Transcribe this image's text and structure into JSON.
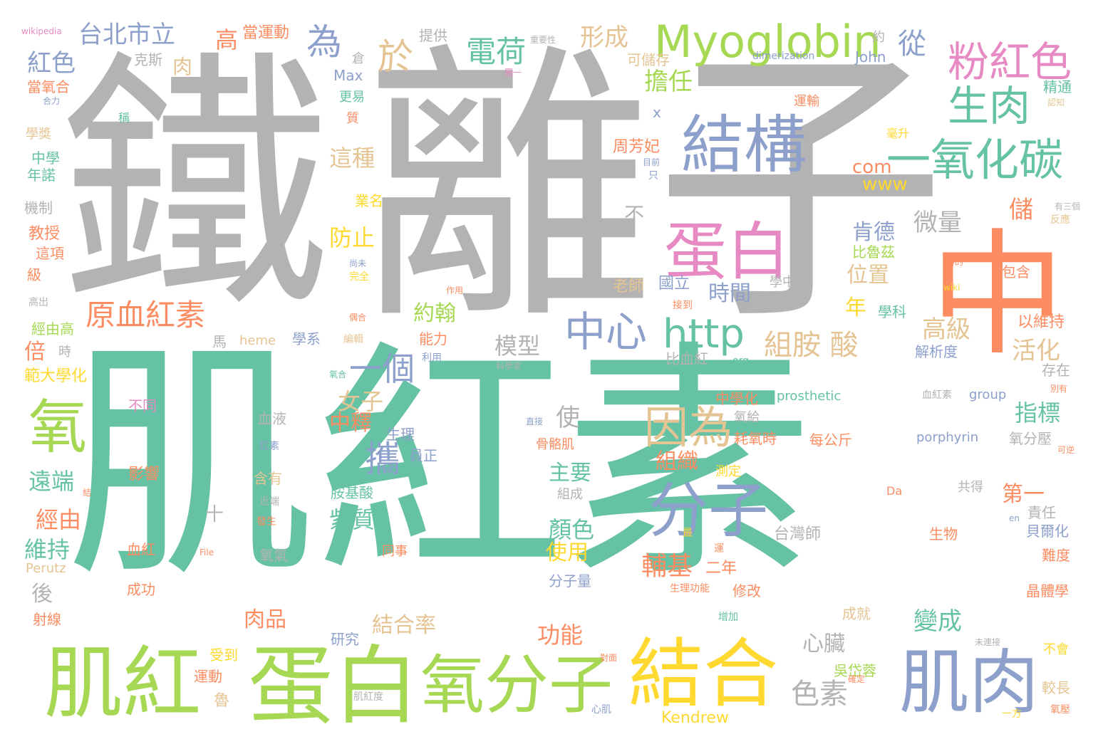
{
  "words": [
    {
      "text": "肌紅素",
      "color": "#66c2a5"
    },
    {
      "text": "鐵",
      "color": "#b3b3b3"
    },
    {
      "text": "離子",
      "color": "#b3b3b3"
    },
    {
      "text": "中",
      "color": "#fc8d62"
    },
    {
      "text": "肌紅",
      "color": "#a6d854"
    },
    {
      "text": "蛋白",
      "color": "#a6d854"
    },
    {
      "text": "氧分子",
      "color": "#a6d854"
    },
    {
      "text": "結合",
      "color": "#ffd92f"
    },
    {
      "text": "肌肉",
      "color": "#8da0cb"
    },
    {
      "text": "結構",
      "color": "#8da0cb"
    },
    {
      "text": "蛋白",
      "color": "#e78ac3"
    },
    {
      "text": "Myoglobin",
      "color": "#a6d854"
    },
    {
      "text": "粉紅色",
      "color": "#e78ac3"
    },
    {
      "text": "生肉",
      "color": "#66c2a5"
    },
    {
      "text": "一氧化碳",
      "color": "#66c2a5"
    },
    {
      "text": "分子",
      "color": "#8da0cb"
    },
    {
      "text": "因為",
      "color": "#e5c494"
    },
    {
      "text": "中心",
      "color": "#8da0cb"
    },
    {
      "text": "http",
      "color": "#66c2a5"
    },
    {
      "text": "氧",
      "color": "#a6d854"
    },
    {
      "text": "一個",
      "color": "#8da0cb"
    },
    {
      "text": "原血紅素",
      "color": "#fc8d62"
    },
    {
      "text": "攜",
      "color": "#8da0cb"
    },
    {
      "text": "組胺 酸",
      "color": "#e5c494"
    },
    {
      "text": "電荷",
      "color": "#66c2a5"
    },
    {
      "text": "為",
      "color": "#8da0cb"
    },
    {
      "text": "於",
      "color": "#e5c494"
    },
    {
      "text": "台北市立",
      "color": "#8da0cb"
    },
    {
      "text": "紅色",
      "color": "#8da0cb"
    },
    {
      "text": "當運動",
      "color": "#fc8d62"
    },
    {
      "text": "形成",
      "color": "#e5c494"
    },
    {
      "text": "擔任",
      "color": "#a6d854"
    },
    {
      "text": "從",
      "color": "#8da0cb"
    },
    {
      "text": "色素",
      "color": "#b3b3b3"
    },
    {
      "text": "Kendrew",
      "color": "#ffd92f"
    },
    {
      "text": "wikipedia",
      "color": "#e78ac3"
    },
    {
      "text": "提供",
      "color": "#b3b3b3"
    },
    {
      "text": "約",
      "color": "#b3b3b3"
    },
    {
      "text": "高",
      "color": "#fc8d62"
    },
    {
      "text": "克斯",
      "color": "#b3b3b3"
    },
    {
      "text": "肉",
      "color": "#e5c494"
    },
    {
      "text": "可儲存",
      "color": "#e5c494"
    },
    {
      "text": "John",
      "color": "#8da0cb"
    },
    {
      "text": "dimerization",
      "color": "#8da0cb"
    },
    {
      "text": "Max",
      "color": "#8da0cb"
    },
    {
      "text": "倉",
      "color": "#b3b3b3"
    },
    {
      "text": "精通",
      "color": "#66c2a5"
    },
    {
      "text": "當氧合",
      "color": "#fc8d62"
    },
    {
      "text": "更易",
      "color": "#66c2a5"
    },
    {
      "text": "運輸",
      "color": "#fc8d62"
    },
    {
      "text": "這種",
      "color": "#e5c494"
    },
    {
      "text": "周芳妃",
      "color": "#fc8d62"
    },
    {
      "text": "com",
      "color": "#fc8d62"
    },
    {
      "text": "www",
      "color": "#ffd92f"
    },
    {
      "text": "中學",
      "color": "#66c2a5"
    },
    {
      "text": "年諾",
      "color": "#66c2a5"
    },
    {
      "text": "機制",
      "color": "#b3b3b3"
    },
    {
      "text": "業名",
      "color": "#ffd92f"
    },
    {
      "text": "教授",
      "color": "#fc8d62"
    },
    {
      "text": "這項",
      "color": "#fc8d62"
    },
    {
      "text": "級",
      "color": "#fc8d62"
    },
    {
      "text": "防止",
      "color": "#ffd92f"
    },
    {
      "text": "不",
      "color": "#b3b3b3"
    },
    {
      "text": "微量",
      "color": "#b3b3b3"
    },
    {
      "text": "儲",
      "color": "#fc8d62"
    },
    {
      "text": "肯德",
      "color": "#8da0cb"
    },
    {
      "text": "位置",
      "color": "#e5c494"
    },
    {
      "text": "比魯茲",
      "color": "#a6d854"
    },
    {
      "text": "包含",
      "color": "#fc8d62"
    },
    {
      "text": "國立",
      "color": "#8da0cb"
    },
    {
      "text": "老師",
      "color": "#e5c494"
    },
    {
      "text": "時間",
      "color": "#8da0cb"
    },
    {
      "text": "約翰",
      "color": "#a6d854"
    },
    {
      "text": "年",
      "color": "#ffd92f"
    },
    {
      "text": "學科",
      "color": "#66c2a5"
    },
    {
      "text": "以維持",
      "color": "#fc8d62"
    },
    {
      "text": "高級",
      "color": "#e5c494"
    },
    {
      "text": "活化",
      "color": "#e5c494"
    },
    {
      "text": "經由高",
      "color": "#a6d854"
    },
    {
      "text": "倍",
      "color": "#fc8d62"
    },
    {
      "text": "範大學化",
      "color": "#ffd92f"
    },
    {
      "text": "模型",
      "color": "#b3b3b3"
    },
    {
      "text": "比血紅",
      "color": "#b3b3b3"
    },
    {
      "text": "heme",
      "color": "#e5c494"
    },
    {
      "text": "學系",
      "color": "#8da0cb"
    },
    {
      "text": "能力",
      "color": "#fc8d62"
    },
    {
      "text": "解析度",
      "color": "#8da0cb"
    },
    {
      "text": "存在",
      "color": "#b3b3b3"
    },
    {
      "text": "女子",
      "color": "#e5c494"
    },
    {
      "text": "中釋",
      "color": "#fc8d62"
    },
    {
      "text": "指標",
      "color": "#66c2a5"
    },
    {
      "text": "使",
      "color": "#b3b3b3"
    },
    {
      "text": "prosthetic",
      "color": "#66c2a5"
    },
    {
      "text": "group",
      "color": "#8da0cb"
    },
    {
      "text": "血紅素",
      "color": "#b3b3b3"
    },
    {
      "text": "porphyrin",
      "color": "#8da0cb"
    },
    {
      "text": "氧分壓",
      "color": "#b3b3b3"
    },
    {
      "text": "中學化",
      "color": "#fc8d62"
    },
    {
      "text": "氧給",
      "color": "#b3b3b3"
    },
    {
      "text": "耗氧時",
      "color": "#fc8d62"
    },
    {
      "text": "每公斤",
      "color": "#fc8d62"
    },
    {
      "text": "不同",
      "color": "#e78ac3"
    },
    {
      "text": "血液",
      "color": "#b3b3b3"
    },
    {
      "text": "生理",
      "color": "#8da0cb"
    },
    {
      "text": "員正",
      "color": "#8da0cb"
    },
    {
      "text": "骨骼肌",
      "color": "#fc8d62"
    },
    {
      "text": "組織",
      "color": "#fc8d62"
    },
    {
      "text": "主要",
      "color": "#66c2a5"
    },
    {
      "text": "第一",
      "color": "#fc8d62"
    },
    {
      "text": "遠端",
      "color": "#66c2a5"
    },
    {
      "text": "影響",
      "color": "#fc8d62"
    },
    {
      "text": "含有",
      "color": "#e5c494"
    },
    {
      "text": "胺基酸",
      "color": "#66c2a5"
    },
    {
      "text": "測定",
      "color": "#ffd92f"
    },
    {
      "text": "共得",
      "color": "#b3b3b3"
    },
    {
      "text": "責任",
      "color": "#b3b3b3"
    },
    {
      "text": "紫質",
      "color": "#66c2a5"
    },
    {
      "text": "顏色",
      "color": "#66c2a5"
    },
    {
      "text": "組成",
      "color": "#b3b3b3"
    },
    {
      "text": "貝爾化",
      "color": "#8da0cb"
    },
    {
      "text": "經由",
      "color": "#fc8d62"
    },
    {
      "text": "維持",
      "color": "#66c2a5"
    },
    {
      "text": "血紅",
      "color": "#fc8d62"
    },
    {
      "text": "氧氣",
      "color": "#b3b3b3"
    },
    {
      "text": "Perutz",
      "color": "#e5c494"
    },
    {
      "text": "同事",
      "color": "#fc8d62"
    },
    {
      "text": "使用",
      "color": "#ffd92f"
    },
    {
      "text": "輔基",
      "color": "#fc8d62"
    },
    {
      "text": "二年",
      "color": "#fc8d62"
    },
    {
      "text": "台灣師",
      "color": "#b3b3b3"
    },
    {
      "text": "生物",
      "color": "#fc8d62"
    },
    {
      "text": "難度",
      "color": "#fc8d62"
    },
    {
      "text": "後",
      "color": "#b3b3b3"
    },
    {
      "text": "成功",
      "color": "#fc8d62"
    },
    {
      "text": "分子量",
      "color": "#8da0cb"
    },
    {
      "text": "生理功能",
      "color": "#fc8d62"
    },
    {
      "text": "修改",
      "color": "#fc8d62"
    },
    {
      "text": "晶體學",
      "color": "#fc8d62"
    },
    {
      "text": "心臟",
      "color": "#b3b3b3"
    },
    {
      "text": "變成",
      "color": "#66c2a5"
    },
    {
      "text": "肉品",
      "color": "#fc8d62"
    },
    {
      "text": "結合率",
      "color": "#e5c494"
    },
    {
      "text": "功能",
      "color": "#fc8d62"
    },
    {
      "text": "射線",
      "color": "#fc8d62"
    },
    {
      "text": "研究",
      "color": "#8da0cb"
    },
    {
      "text": "成就",
      "color": "#e5c494"
    },
    {
      "text": "受到",
      "color": "#ffd92f"
    },
    {
      "text": "運動",
      "color": "#fc8d62"
    },
    {
      "text": "吳岱蓉",
      "color": "#a6d854"
    },
    {
      "text": "較長",
      "color": "#e5c494"
    },
    {
      "text": "不會",
      "color": "#ffd92f"
    },
    {
      "text": "肌紅度",
      "color": "#b3b3b3"
    },
    {
      "text": "心肌",
      "color": "#8da0cb"
    },
    {
      "text": "氧壓",
      "color": "#fc8d62"
    },
    {
      "text": "一方",
      "color": "#ffd92f"
    },
    {
      "text": "魯",
      "color": "#e5c494"
    },
    {
      "text": "馬",
      "color": "#b3b3b3"
    },
    {
      "text": "時",
      "color": "#b3b3b3"
    },
    {
      "text": "稱",
      "color": "#66c2a5"
    },
    {
      "text": "學獎",
      "color": "#e5c494"
    },
    {
      "text": "質",
      "color": "#fc8d62"
    },
    {
      "text": "合力",
      "color": "#8da0cb"
    },
    {
      "text": "重要性",
      "color": "#b3b3b3"
    },
    {
      "text": "圖一",
      "color": "#e78ac3"
    },
    {
      "text": "目前",
      "color": "#8da0cb"
    },
    {
      "text": "只",
      "color": "#8da0cb"
    },
    {
      "text": "毫升",
      "color": "#ffd92f"
    },
    {
      "text": "x",
      "color": "#8da0cb"
    },
    {
      "text": "有三個",
      "color": "#b3b3b3"
    },
    {
      "text": "反應",
      "color": "#e5c494"
    },
    {
      "text": "認知",
      "color": "#e5c494"
    },
    {
      "text": "轉的",
      "color": "#fc8d62"
    },
    {
      "text": "wiki",
      "color": "#ffd92f"
    },
    {
      "text": "學中",
      "color": "#b3b3b3"
    },
    {
      "text": "接到",
      "color": "#fc8d62"
    },
    {
      "text": "尚未",
      "color": "#8da0cb"
    },
    {
      "text": "完全",
      "color": "#ffd92f"
    },
    {
      "text": "作用",
      "color": "#fc8d62"
    },
    {
      "text": "高出",
      "color": "#b3b3b3"
    },
    {
      "text": "偶合",
      "color": "#fc8d62"
    },
    {
      "text": "編輯",
      "color": "#e5c494"
    },
    {
      "text": "利用",
      "color": "#8da0cb"
    },
    {
      "text": "科學家",
      "color": "#b3b3b3"
    },
    {
      "text": "org",
      "color": "#66c2a5"
    },
    {
      "text": "氧合",
      "color": "#66c2a5"
    },
    {
      "text": "直接",
      "color": "#8da0cb"
    },
    {
      "text": "紅素",
      "color": "#8da0cb"
    },
    {
      "text": "近端",
      "color": "#b3b3b3"
    },
    {
      "text": "發生",
      "color": "#fc8d62"
    },
    {
      "text": "最",
      "color": "#ffd92f"
    },
    {
      "text": "運",
      "color": "#fc8d62"
    },
    {
      "text": "File",
      "color": "#fc8d62"
    },
    {
      "text": "en",
      "color": "#8da0cb"
    },
    {
      "text": "Da",
      "color": "#fc8d62"
    },
    {
      "text": "可逆",
      "color": "#fc8d62"
    },
    {
      "text": "別有",
      "color": "#fc8d62"
    },
    {
      "text": "對面",
      "color": "#fc8d62"
    },
    {
      "text": "增加",
      "color": "#66c2a5"
    },
    {
      "text": "確定",
      "color": "#fc8d62"
    },
    {
      "text": "未連接",
      "color": "#b3b3b3"
    },
    {
      "text": "十",
      "color": "#b3b3b3"
    },
    {
      "text": "結",
      "color": "#fc8d62"
    }
  ]
}
